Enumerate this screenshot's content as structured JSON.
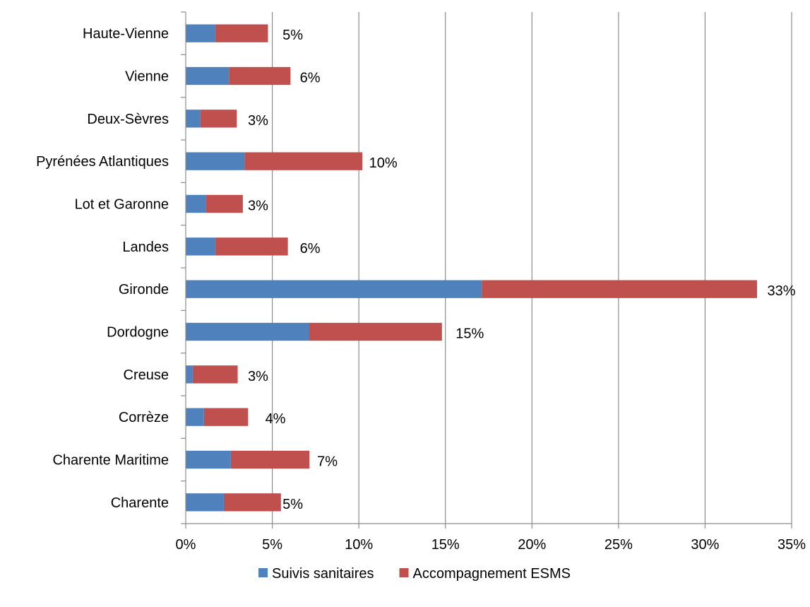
{
  "chart_data": {
    "type": "bar",
    "orientation": "horizontal",
    "stacked": true,
    "categories": [
      "Charente",
      "Charente Maritime",
      "Corrèze",
      "Creuse",
      "Dordogne",
      "Gironde",
      "Landes",
      "Lot et Garonne",
      "Pyrénées Atlantiques",
      "Deux-Sèvres",
      "Vienne",
      "Haute-Vienne"
    ],
    "series": [
      {
        "name": "Suivis sanitaires",
        "color": "#4f81bd",
        "values": [
          2.2,
          2.6,
          1.05,
          0.4,
          7.1,
          17.1,
          1.7,
          1.15,
          3.4,
          0.85,
          2.5,
          1.7
        ]
      },
      {
        "name": "Accompagnement ESMS",
        "color": "#c0504d",
        "values": [
          3.3,
          4.55,
          2.55,
          2.6,
          7.7,
          15.9,
          4.2,
          2.15,
          6.8,
          2.1,
          3.55,
          3.05
        ]
      }
    ],
    "totals_labels": [
      "5%",
      "7%",
      "4%",
      "3%",
      "15%",
      "33%",
      "6%",
      "3%",
      "10%",
      "3%",
      "6%",
      "5%"
    ],
    "x_ticks": [
      "0%",
      "5%",
      "10%",
      "15%",
      "20%",
      "25%",
      "30%",
      "35%"
    ],
    "xlim": [
      0,
      35
    ],
    "grid": "vertical",
    "legend": "bottom",
    "title": "",
    "xlabel": "",
    "ylabel": ""
  }
}
